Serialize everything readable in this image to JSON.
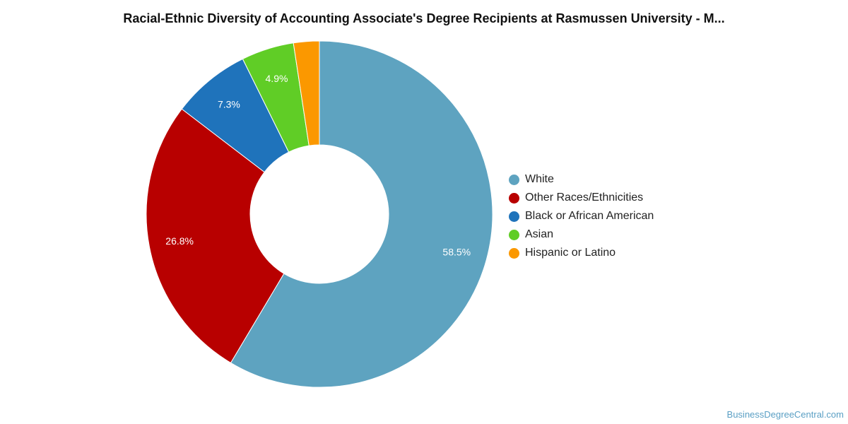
{
  "chart_data": {
    "type": "pie",
    "title": "Racial-Ethnic Diversity of Accounting Associate's Degree Recipients at Rasmussen University - M...",
    "donut": true,
    "legend_position": "right",
    "slices": [
      {
        "label": "White",
        "value": 58.5,
        "display": "58.5%",
        "color": "#5ea3c0"
      },
      {
        "label": "Other Races/Ethnicities",
        "value": 26.8,
        "display": "26.8%",
        "color": "#b80000"
      },
      {
        "label": "Black or African American",
        "value": 7.3,
        "display": "7.3%",
        "color": "#1f73bb"
      },
      {
        "label": "Asian",
        "value": 4.9,
        "display": "4.9%",
        "color": "#60cd26"
      },
      {
        "label": "Hispanic or Latino",
        "value": 2.4,
        "display": "",
        "color": "#fb9800"
      }
    ]
  },
  "watermark": "BusinessDegreeCentral.com"
}
